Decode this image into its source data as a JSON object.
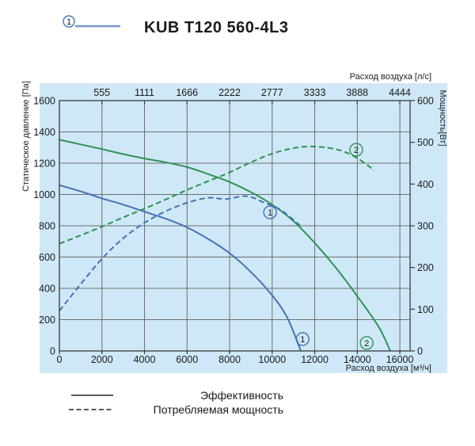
{
  "title": {
    "marker": "1",
    "text": "KUB T120 560-4L3"
  },
  "colors": {
    "panel_bg": "#cfe8f7",
    "grid": "#6f6f6f",
    "frame": "#3a3a3a",
    "blue": "#4673b4",
    "green": "#2f9254",
    "title_line": "#7b97cd",
    "legend_line": "#5a5a5a",
    "text": "#1a1a1a"
  },
  "chart_data": {
    "type": "line",
    "title": "KUB T120 560-4L3",
    "grid": true,
    "top_axis": {
      "label": "Расход воздуха [л/с]",
      "ticks": [
        555,
        1111,
        1666,
        2222,
        2777,
        3333,
        3888,
        4444
      ]
    },
    "bottom_axis": {
      "label": "Расход воздуха [м³/ч]",
      "ticks": [
        0,
        2000,
        4000,
        6000,
        8000,
        10000,
        12000,
        14000,
        16000
      ],
      "range": [
        0,
        16480
      ]
    },
    "left_axis": {
      "label": "Статическое давление [Па]",
      "ticks": [
        0,
        200,
        400,
        600,
        800,
        1000,
        1200,
        1400,
        1600
      ],
      "range": [
        0,
        1600
      ]
    },
    "right_axis": {
      "label": "Мощность[Вт]",
      "ticks": [
        0,
        100,
        200,
        300,
        400,
        500,
        600
      ],
      "range": [
        0,
        600
      ]
    },
    "series": [
      {
        "name": "Эффективность ①",
        "axis": "left",
        "style": "solid",
        "color": "blue",
        "points": [
          [
            0,
            1060
          ],
          [
            1000,
            1020
          ],
          [
            2000,
            975
          ],
          [
            3000,
            935
          ],
          [
            4000,
            890
          ],
          [
            5000,
            845
          ],
          [
            6000,
            790
          ],
          [
            7000,
            715
          ],
          [
            8000,
            625
          ],
          [
            9000,
            505
          ],
          [
            10000,
            355
          ],
          [
            10700,
            215
          ],
          [
            11350,
            0
          ]
        ]
      },
      {
        "name": "Эффективность ②",
        "axis": "left",
        "style": "solid",
        "color": "green",
        "points": [
          [
            0,
            1350
          ],
          [
            1000,
            1320
          ],
          [
            2000,
            1290
          ],
          [
            3000,
            1258
          ],
          [
            4000,
            1230
          ],
          [
            5000,
            1205
          ],
          [
            6000,
            1175
          ],
          [
            7000,
            1130
          ],
          [
            8000,
            1080
          ],
          [
            9000,
            1015
          ],
          [
            10000,
            935
          ],
          [
            11000,
            830
          ],
          [
            12000,
            690
          ],
          [
            13000,
            530
          ],
          [
            14000,
            350
          ],
          [
            15000,
            155
          ],
          [
            15550,
            0
          ]
        ]
      },
      {
        "name": "Потребляемая мощность ①",
        "axis": "right",
        "style": "dashed",
        "color": "blue",
        "points": [
          [
            0,
            96
          ],
          [
            1000,
            160
          ],
          [
            2000,
            221
          ],
          [
            3000,
            270
          ],
          [
            4000,
            307
          ],
          [
            5000,
            335
          ],
          [
            6000,
            355
          ],
          [
            7000,
            367
          ],
          [
            7800,
            364
          ],
          [
            8800,
            371
          ],
          [
            9600,
            356
          ],
          [
            10400,
            338
          ],
          [
            11300,
            301
          ]
        ]
      },
      {
        "name": "Потребляемая мощность ②",
        "axis": "right",
        "style": "dashed",
        "color": "green",
        "points": [
          [
            0,
            257
          ],
          [
            1000,
            277
          ],
          [
            2000,
            298
          ],
          [
            3000,
            320
          ],
          [
            4000,
            341
          ],
          [
            5000,
            363
          ],
          [
            6000,
            386
          ],
          [
            7000,
            407
          ],
          [
            8000,
            428
          ],
          [
            9000,
            452
          ],
          [
            10000,
            473
          ],
          [
            11000,
            486
          ],
          [
            11800,
            490
          ],
          [
            12600,
            487
          ],
          [
            13300,
            479
          ],
          [
            14000,
            462
          ],
          [
            14800,
            433
          ]
        ]
      }
    ],
    "markers": [
      {
        "label": "1",
        "color": "blue",
        "flow": 9900,
        "pa": 886
      },
      {
        "label": "2",
        "color": "green",
        "flow": 13950,
        "pa": 1286
      },
      {
        "label": "1",
        "color": "blue",
        "flow": 11430,
        "pa": 76
      },
      {
        "label": "2",
        "color": "green",
        "flow": 14440,
        "pa": 51
      }
    ]
  },
  "legend": [
    {
      "style": "solid",
      "label": "Эффективность"
    },
    {
      "style": "dashed",
      "label": "Потребляемая мощность"
    }
  ]
}
